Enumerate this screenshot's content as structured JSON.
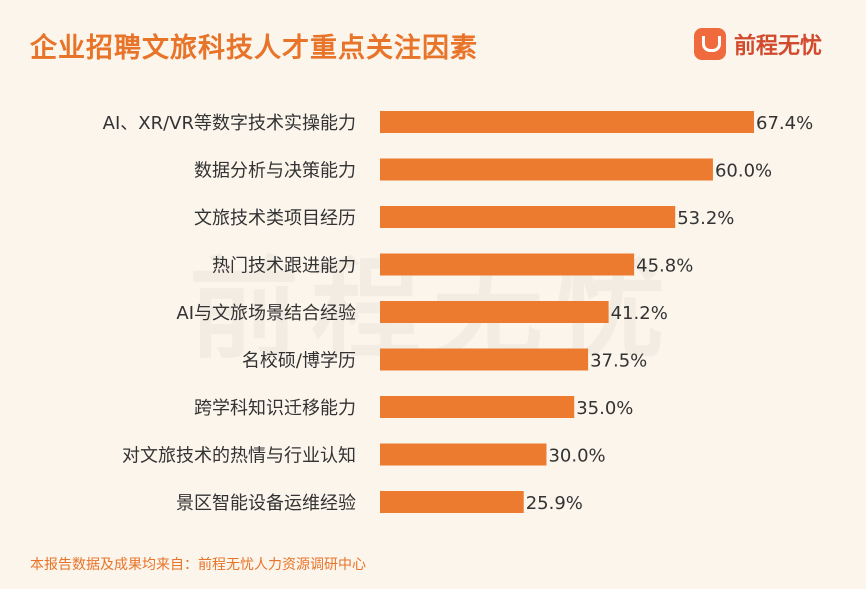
{
  "header": {
    "title": "企业招聘文旅科技人才重点关注因素",
    "brand_name": "前程无忧",
    "watermark": "前程无忧"
  },
  "footer": {
    "source": "本报告数据及成果均来自：前程无忧人力资源调研中心"
  },
  "colors": {
    "bar": "#ec7b30",
    "title": "#e8742a",
    "background": "#fbf5ec"
  },
  "chart_data": {
    "type": "bar",
    "orientation": "horizontal",
    "categories": [
      "AI、XR/VR等数字技术实操能力",
      "数据分析与决策能力",
      "文旅技术类项目经历",
      "热门技术跟进能力",
      "AI与文旅场景结合经验",
      "名校硕/博学历",
      "跨学科知识迁移能力",
      "对文旅技术的热情与行业认知",
      "景区智能设备运维经验"
    ],
    "values": [
      67.4,
      60.0,
      53.2,
      45.8,
      41.2,
      37.5,
      35.0,
      30.0,
      25.9
    ],
    "value_labels": [
      "67.4%",
      "60.0%",
      "53.2%",
      "45.8%",
      "41.2%",
      "37.5%",
      "35.0%",
      "30.0%",
      "25.9%"
    ],
    "unit": "%",
    "xlim": [
      0,
      67.4
    ],
    "grid": false,
    "legend": false
  }
}
